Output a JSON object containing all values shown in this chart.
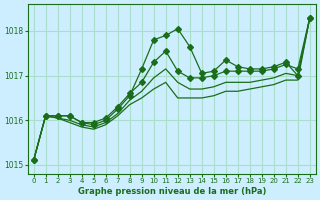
{
  "title": "Graphe pression niveau de la mer (hPa)",
  "bg_color": "#cceeff",
  "grid_color": "#aaddcc",
  "line_color": "#1a6e1a",
  "xlim": [
    -0.5,
    23.5
  ],
  "ylim": [
    1014.8,
    1018.6
  ],
  "yticks": [
    1015,
    1016,
    1017,
    1018
  ],
  "xticks": [
    0,
    1,
    2,
    3,
    4,
    5,
    6,
    7,
    8,
    9,
    10,
    11,
    12,
    13,
    14,
    15,
    16,
    17,
    18,
    19,
    20,
    21,
    22,
    23
  ],
  "series": [
    {
      "x": [
        0,
        1,
        2,
        3,
        4,
        5,
        6,
        7,
        8,
        9,
        10,
        11,
        12,
        13,
        14,
        15,
        16,
        17,
        18,
        19,
        20,
        21,
        22,
        23
      ],
      "y": [
        1015.1,
        1016.1,
        1016.1,
        1016.1,
        1015.95,
        1015.9,
        1016.0,
        1016.25,
        1016.55,
        1017.15,
        1017.8,
        1017.9,
        1018.05,
        1017.65,
        1017.05,
        1017.1,
        1017.35,
        1017.2,
        1017.15,
        1017.15,
        1017.2,
        1017.3,
        1017.0,
        1018.3
      ],
      "marker": "D",
      "markersize": 3
    },
    {
      "x": [
        0,
        1,
        2,
        3,
        4,
        5,
        6,
        7,
        8,
        9,
        10,
        11,
        12,
        13,
        14,
        15,
        16,
        17,
        18,
        19,
        20,
        21,
        22,
        23
      ],
      "y": [
        1015.1,
        1016.1,
        1016.1,
        1016.1,
        1015.95,
        1015.95,
        1016.05,
        1016.3,
        1016.6,
        1016.85,
        1017.3,
        1017.55,
        1017.1,
        1016.95,
        1016.95,
        1017.0,
        1017.1,
        1017.1,
        1017.1,
        1017.1,
        1017.15,
        1017.25,
        1017.15,
        1018.3
      ],
      "marker": "D",
      "markersize": 3
    },
    {
      "x": [
        0,
        1,
        2,
        3,
        4,
        5,
        6,
        7,
        8,
        9,
        10,
        11,
        12,
        13,
        14,
        15,
        16,
        17,
        18,
        19,
        20,
        21,
        22,
        23
      ],
      "y": [
        1015.1,
        1016.1,
        1016.05,
        1016.0,
        1015.9,
        1015.85,
        1015.95,
        1016.15,
        1016.45,
        1016.65,
        1016.95,
        1017.15,
        1016.85,
        1016.7,
        1016.7,
        1016.75,
        1016.85,
        1016.85,
        1016.85,
        1016.9,
        1016.95,
        1017.05,
        1017.0,
        1018.3
      ],
      "marker": null,
      "markersize": 0
    },
    {
      "x": [
        0,
        1,
        2,
        3,
        4,
        5,
        6,
        7,
        8,
        9,
        10,
        11,
        12,
        13,
        14,
        15,
        16,
        17,
        18,
        19,
        20,
        21,
        22,
        23
      ],
      "y": [
        1015.1,
        1016.1,
        1016.05,
        1015.95,
        1015.85,
        1015.8,
        1015.9,
        1016.1,
        1016.35,
        1016.5,
        1016.7,
        1016.85,
        1016.5,
        1016.5,
        1016.5,
        1016.55,
        1016.65,
        1016.65,
        1016.7,
        1016.75,
        1016.8,
        1016.9,
        1016.9,
        1018.3
      ],
      "marker": null,
      "markersize": 0
    }
  ]
}
